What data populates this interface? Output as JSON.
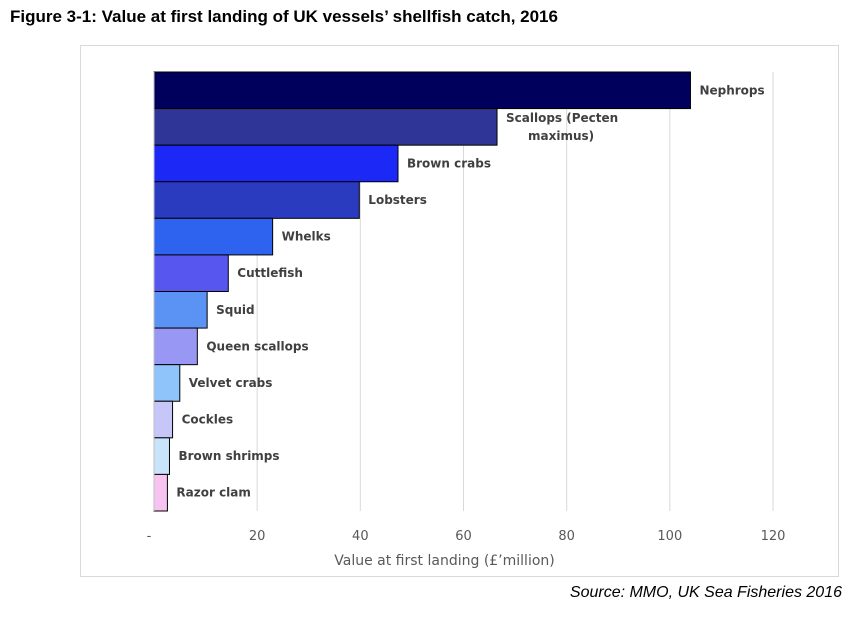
{
  "figure": {
    "title": "Figure 3-1: Value at first landing of UK vessels’ shellfish catch, 2016",
    "source": "Source: MMO, UK Sea Fisheries 2016"
  },
  "chart_data": {
    "type": "bar",
    "orientation": "horizontal",
    "title": "",
    "xlabel": "Value at first landing (£’million)",
    "ylabel": "",
    "xlim": [
      0,
      120
    ],
    "x_ticks": [
      {
        "value": 0,
        "label": "-"
      },
      {
        "value": 20,
        "label": "20"
      },
      {
        "value": 40,
        "label": "40"
      },
      {
        "value": 60,
        "label": "60"
      },
      {
        "value": 80,
        "label": "80"
      },
      {
        "value": 100,
        "label": "100"
      },
      {
        "value": 120,
        "label": "120"
      }
    ],
    "grid": true,
    "legend": "none",
    "bars": [
      {
        "category": "Nephrops",
        "label_lines": [
          "Nephrops"
        ],
        "value": 104,
        "color": "#00005c"
      },
      {
        "category": "Scallops (Pecten maximus)",
        "label_lines": [
          "Scallops (Pecten",
          "maximus)"
        ],
        "value": 66.5,
        "color": "#2f3596"
      },
      {
        "category": "Brown crabs",
        "label_lines": [
          "Brown crabs"
        ],
        "value": 47.3,
        "color": "#1c28f5"
      },
      {
        "category": "Lobsters",
        "label_lines": [
          "Lobsters"
        ],
        "value": 39.8,
        "color": "#2b3bc0"
      },
      {
        "category": "Whelks",
        "label_lines": [
          "Whelks"
        ],
        "value": 23,
        "color": "#2e63f0"
      },
      {
        "category": "Cuttlefish",
        "label_lines": [
          "Cuttlefish"
        ],
        "value": 14.4,
        "color": "#5757ef"
      },
      {
        "category": "Squid",
        "label_lines": [
          "Squid"
        ],
        "value": 10.3,
        "color": "#5b93f4"
      },
      {
        "category": "Queen scallops",
        "label_lines": [
          "Queen scallops"
        ],
        "value": 8.4,
        "color": "#9898f4"
      },
      {
        "category": "Velvet crabs",
        "label_lines": [
          "Velvet crabs"
        ],
        "value": 5,
        "color": "#8fc4fa"
      },
      {
        "category": "Cockles",
        "label_lines": [
          "Cockles"
        ],
        "value": 3.6,
        "color": "#c6c6f8"
      },
      {
        "category": "Brown shrimps",
        "label_lines": [
          "Brown shrimps"
        ],
        "value": 3,
        "color": "#c8e4fb"
      },
      {
        "category": "Razor clam",
        "label_lines": [
          "Razor clam"
        ],
        "value": 2.6,
        "color": "#f7c3f0"
      }
    ]
  }
}
